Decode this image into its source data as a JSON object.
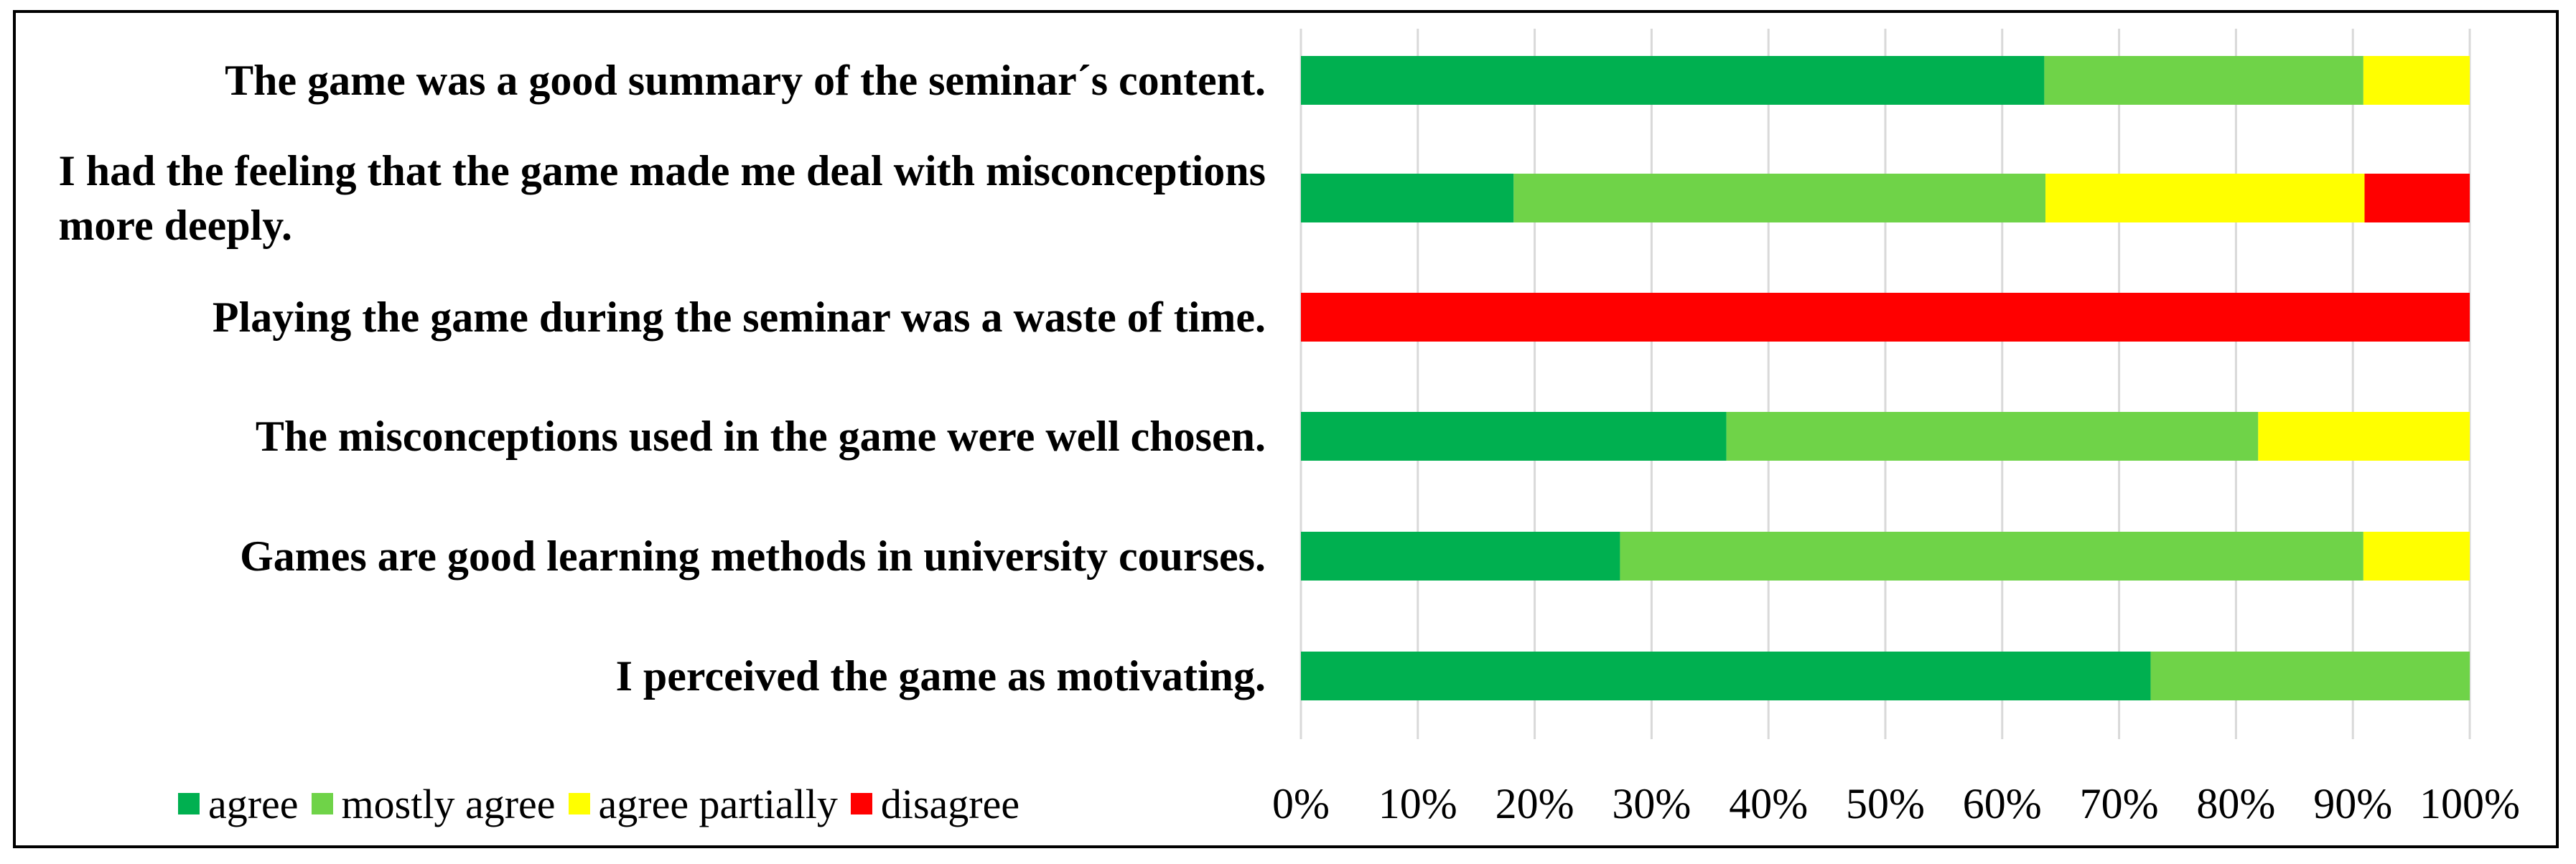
{
  "chart_data": {
    "type": "bar",
    "orientation": "horizontal",
    "stacked": "percent",
    "categories": [
      "The game was a good summary of the seminar´s content.",
      "I had the feeling that the game made me deal with misconceptions more deeply.",
      "Playing the game during the seminar was a waste of time.",
      "The misconceptions used in the game were well chosen.",
      "Games are good learning methods in university courses.",
      "I perceived the game as motivating."
    ],
    "category_lines": [
      [
        "The game was a good summary of the seminar´s content."
      ],
      [
        "I had the feeling that the game made me deal with misconceptions",
        "more deeply."
      ],
      [
        "Playing the game during the seminar was a waste of time."
      ],
      [
        "The misconceptions used in the game were well chosen."
      ],
      [
        "Games are good learning methods in university courses."
      ],
      [
        "I perceived the game as motivating."
      ]
    ],
    "series": [
      {
        "name": "agree",
        "color": "#00b050",
        "values": [
          63.6,
          18.2,
          0,
          36.4,
          27.3,
          72.7
        ]
      },
      {
        "name": "mostly agree",
        "color": "#6fd348",
        "values": [
          27.3,
          45.5,
          0,
          45.5,
          63.6,
          27.3
        ]
      },
      {
        "name": "agree partially",
        "color": "#ffff00",
        "values": [
          9.1,
          27.3,
          0,
          18.2,
          9.1,
          0
        ]
      },
      {
        "name": "disagree",
        "color": "#ff0000",
        "values": [
          0,
          9.1,
          100,
          0,
          0,
          0
        ]
      }
    ],
    "xlim": [
      0,
      100
    ],
    "x_ticks": [
      "0%",
      "10%",
      "20%",
      "30%",
      "40%",
      "50%",
      "60%",
      "70%",
      "80%",
      "90%",
      "100%"
    ],
    "grid": true,
    "legend_position": "bottom-left",
    "title": "",
    "xlabel": "",
    "ylabel": ""
  }
}
